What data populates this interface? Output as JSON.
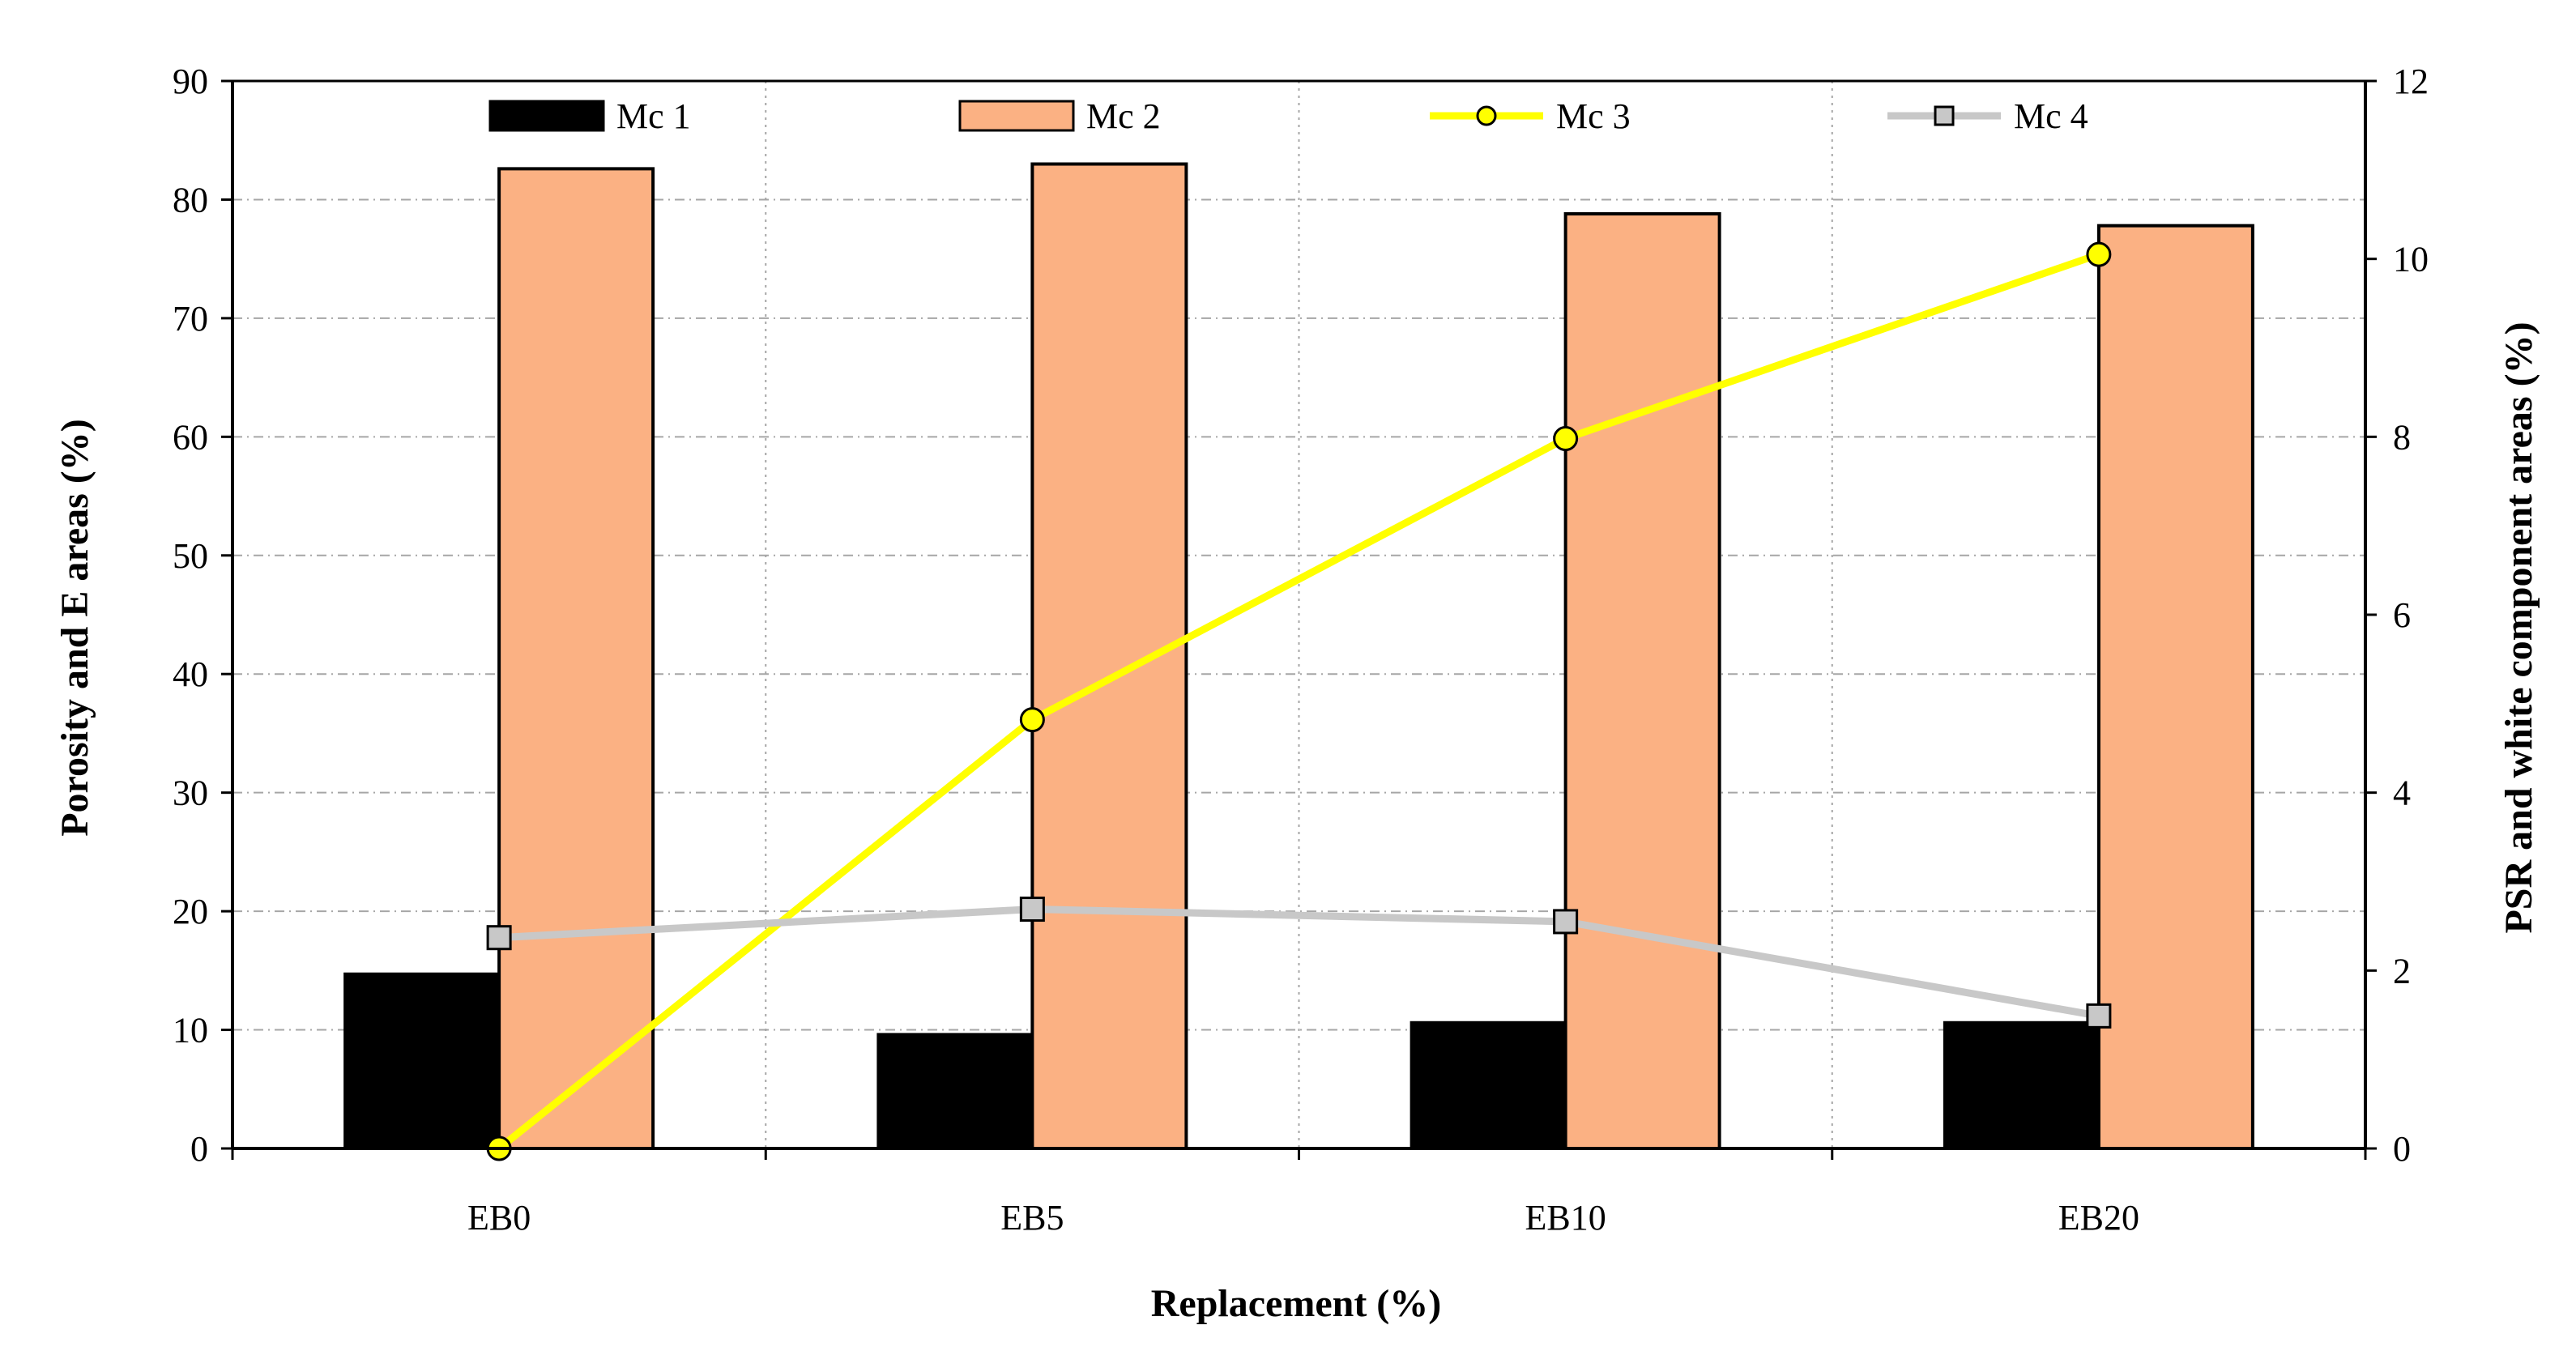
{
  "chart_data": {
    "type": "bar",
    "categories": [
      "EB0",
      "EB5",
      "EB10",
      "EB20"
    ],
    "xlabel": "Replacement (%)",
    "ylabel": "Porosity and E areas (%)",
    "y2label": "PSR and white component areas  (%)",
    "ylim": [
      0,
      90
    ],
    "y2lim": [
      0,
      12
    ],
    "yticks": [
      "0",
      "10",
      "20",
      "30",
      "40",
      "50",
      "60",
      "70",
      "80",
      "90"
    ],
    "y2ticks": [
      "0",
      "2",
      "4",
      "6",
      "8",
      "10",
      "12"
    ],
    "grid": true,
    "legend_position": "top",
    "series": [
      {
        "name": "Mc 1",
        "kind": "bar",
        "axis": "left",
        "color": "#000000",
        "values": [
          14.7,
          9.6,
          10.6,
          10.6
        ]
      },
      {
        "name": "Mc 2",
        "kind": "bar",
        "axis": "left",
        "color": "#FBB183",
        "values": [
          82.6,
          83.0,
          78.8,
          77.8
        ]
      },
      {
        "name": "Mc 3",
        "kind": "line",
        "axis": "right",
        "color": "#FFFF00",
        "marker": "circle",
        "values": [
          0.0,
          4.82,
          7.98,
          10.05
        ]
      },
      {
        "name": "Mc 4",
        "kind": "line",
        "axis": "right",
        "color": "#C8C8C8",
        "marker": "square",
        "values": [
          2.37,
          2.69,
          2.55,
          1.49
        ]
      }
    ]
  }
}
